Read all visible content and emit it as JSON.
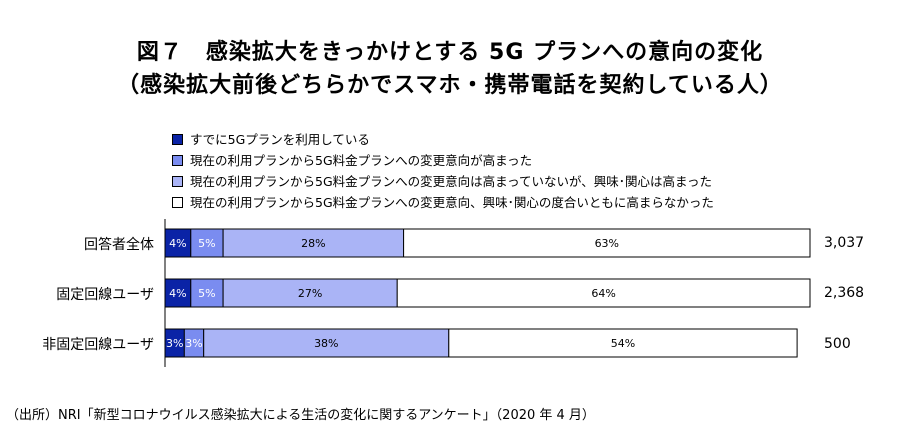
{
  "title": {
    "line1": "図７　感染拡大をきっかけとする 5G プランへの意向の変化",
    "line2": "（感染拡大前後どちらかでスマホ・携帯電話を契約している人）"
  },
  "chart_data": {
    "type": "bar",
    "orientation": "horizontal",
    "stacked": "100%",
    "categories": [
      "回答者全体",
      "固定回線ユーザ",
      "非固定回線ユーザ"
    ],
    "series": [
      {
        "name": "すでに5Gプランを利用している",
        "color": "#0a23a6",
        "values": [
          4,
          4,
          3
        ]
      },
      {
        "name": "現在の利用プランから5G料金プランへの変更意向が高まった",
        "color": "#7a8cf0",
        "values": [
          5,
          5,
          3
        ]
      },
      {
        "name": "現在の利用プランから5G料金プランへの変更意向は高まっていないが、興味･関心は高まった",
        "color": "#aab4f6",
        "values": [
          28,
          27,
          38
        ]
      },
      {
        "name": "現在の利用プランから5G料金プランへの変更意向、興味･関心の度合いともに高まらなかった",
        "color": "#ffffff",
        "values": [
          63,
          64,
          54
        ]
      }
    ],
    "totals": [
      "3,037",
      "2,368",
      "500"
    ],
    "legend_position": "top"
  },
  "source": "（出所）NRI「新型コロナウイルス感染拡大による生活の変化に関するアンケート」（2020 年 4 月）"
}
